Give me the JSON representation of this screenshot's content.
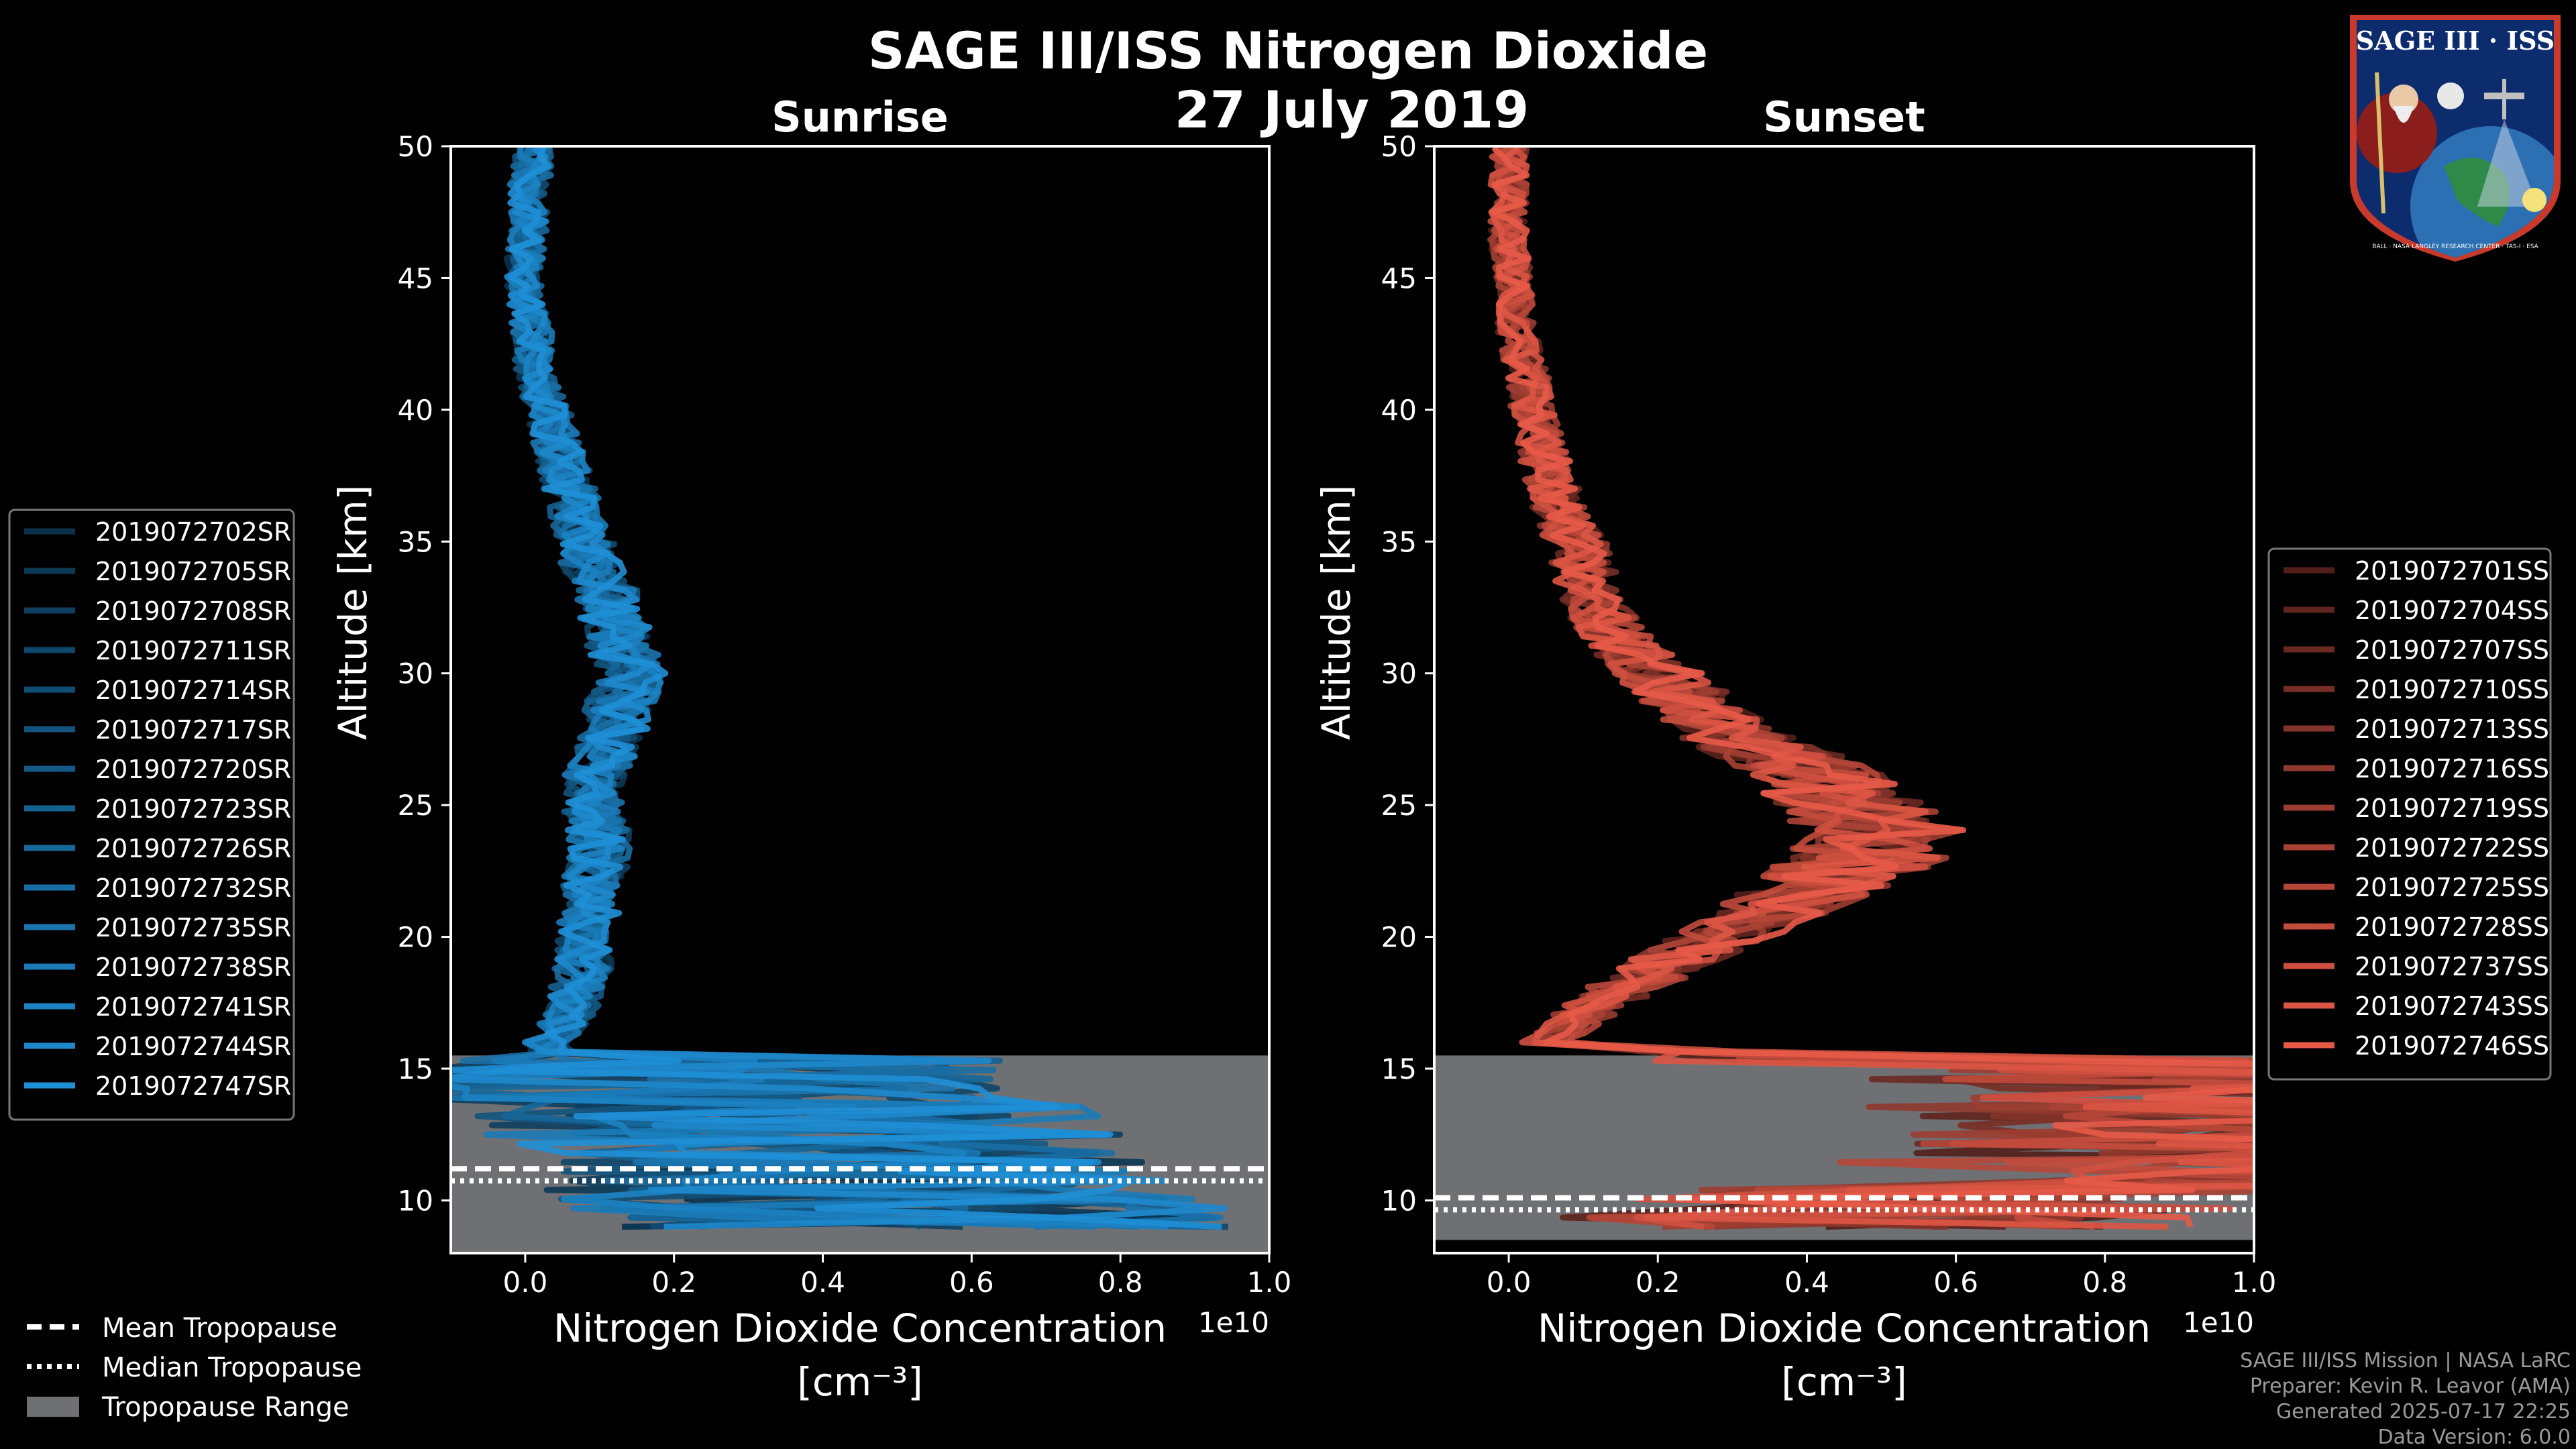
{
  "title": "SAGE III/ISS Nitrogen Dioxide",
  "date": "27 July 2019",
  "footer": {
    "line1": "SAGE III/ISS Mission | NASA LaRC",
    "line2": "Preparer: Kevin R. Leavor (AMA)",
    "line3": "Generated 2025-07-17 22:25",
    "line4": "Data Version: 6.0.0"
  },
  "logo": {
    "title": "SAGE III · ISS",
    "ring_text": "BALL · NASA LANGLEY RESEARCH CENTER · TAS-I · ESA"
  },
  "tropopause_legend": {
    "mean": "Mean Tropopause",
    "median": "Median Tropopause",
    "range": "Tropopause Range"
  },
  "colors": {
    "sunrise": "#1f8fd6",
    "sunset": "#e85a48",
    "tropopause_range": "#6f7074",
    "background": "#000000",
    "text": "#ffffff"
  },
  "chart_data": [
    {
      "type": "line",
      "subtitle": "Sunrise",
      "xlabel": "Nitrogen Dioxide Concentration",
      "xlabel_unit": "[cm⁻³]",
      "ylabel": "Altitude [km]",
      "x_multiplier": "1e10",
      "xlim": [
        -0.1,
        1.0
      ],
      "ylim": [
        8,
        50
      ],
      "x_ticks": [
        "0.0",
        "0.2",
        "0.4",
        "0.6",
        "0.8",
        "1.0"
      ],
      "y_ticks": [
        "10",
        "15",
        "20",
        "25",
        "30",
        "35",
        "40",
        "45",
        "50"
      ],
      "legend_position": "left",
      "series_names": [
        "2019072702SR",
        "2019072705SR",
        "2019072708SR",
        "2019072711SR",
        "2019072714SR",
        "2019072717SR",
        "2019072720SR",
        "2019072723SR",
        "2019072726SR",
        "2019072732SR",
        "2019072735SR",
        "2019072738SR",
        "2019072741SR",
        "2019072744SR",
        "2019072747SR"
      ],
      "profile_alt": [
        9,
        10,
        11,
        12,
        13,
        14,
        15,
        16,
        17,
        18,
        19,
        20,
        21,
        22,
        23,
        24,
        25,
        26,
        27,
        28,
        29,
        30,
        31,
        32,
        33,
        34,
        35,
        36,
        37,
        38,
        39,
        40,
        41,
        42,
        43,
        44,
        45,
        46,
        47,
        48,
        49,
        50
      ],
      "profile_mean": [
        0.4,
        0.3,
        0.25,
        0.2,
        0.15,
        0.1,
        0.05,
        0.03,
        0.06,
        0.07,
        0.08,
        0.08,
        0.09,
        0.09,
        0.1,
        0.1,
        0.09,
        0.09,
        0.11,
        0.12,
        0.13,
        0.14,
        0.13,
        0.12,
        0.11,
        0.09,
        0.08,
        0.07,
        0.06,
        0.05,
        0.04,
        0.03,
        0.02,
        0.01,
        0.01,
        0.0,
        0.0,
        0.0,
        0.01,
        0.0,
        0.01,
        0.01
      ],
      "tropopause": {
        "mean": 11.2,
        "median": 11.1,
        "range": [
          8,
          15.5
        ]
      }
    },
    {
      "type": "line",
      "subtitle": "Sunset",
      "xlabel": "Nitrogen Dioxide Concentration",
      "xlabel_unit": "[cm⁻³]",
      "ylabel": "Altitude [km]",
      "x_multiplier": "1e10",
      "xlim": [
        -0.1,
        1.0
      ],
      "ylim": [
        8,
        50
      ],
      "x_ticks": [
        "0.0",
        "0.2",
        "0.4",
        "0.6",
        "0.8",
        "1.0"
      ],
      "y_ticks": [
        "10",
        "15",
        "20",
        "25",
        "30",
        "35",
        "40",
        "45",
        "50"
      ],
      "legend_position": "right",
      "series_names": [
        "2019072701SS",
        "2019072704SS",
        "2019072707SS",
        "2019072710SS",
        "2019072713SS",
        "2019072716SS",
        "2019072719SS",
        "2019072722SS",
        "2019072725SS",
        "2019072728SS",
        "2019072737SS",
        "2019072743SS",
        "2019072746SS"
      ],
      "profile_alt": [
        9,
        10,
        11,
        12,
        13,
        14,
        15,
        16,
        17,
        18,
        19,
        20,
        21,
        22,
        23,
        24,
        25,
        26,
        27,
        28,
        29,
        30,
        31,
        32,
        33,
        34,
        35,
        36,
        37,
        38,
        39,
        40,
        41,
        42,
        43,
        44,
        45,
        46,
        47,
        48,
        49,
        50
      ],
      "profile_mean": [
        0.3,
        0.4,
        0.6,
        0.8,
        0.8,
        0.7,
        0.6,
        0.05,
        0.1,
        0.15,
        0.22,
        0.28,
        0.35,
        0.42,
        0.48,
        0.5,
        0.46,
        0.42,
        0.35,
        0.28,
        0.24,
        0.2,
        0.16,
        0.13,
        0.11,
        0.1,
        0.09,
        0.07,
        0.06,
        0.05,
        0.04,
        0.03,
        0.03,
        0.02,
        0.01,
        0.01,
        0.01,
        0.0,
        0.0,
        0.0,
        0.0,
        0.0
      ],
      "tropopause": {
        "mean": 10.1,
        "median": 10.0,
        "range": [
          8.5,
          15.5
        ]
      }
    }
  ]
}
